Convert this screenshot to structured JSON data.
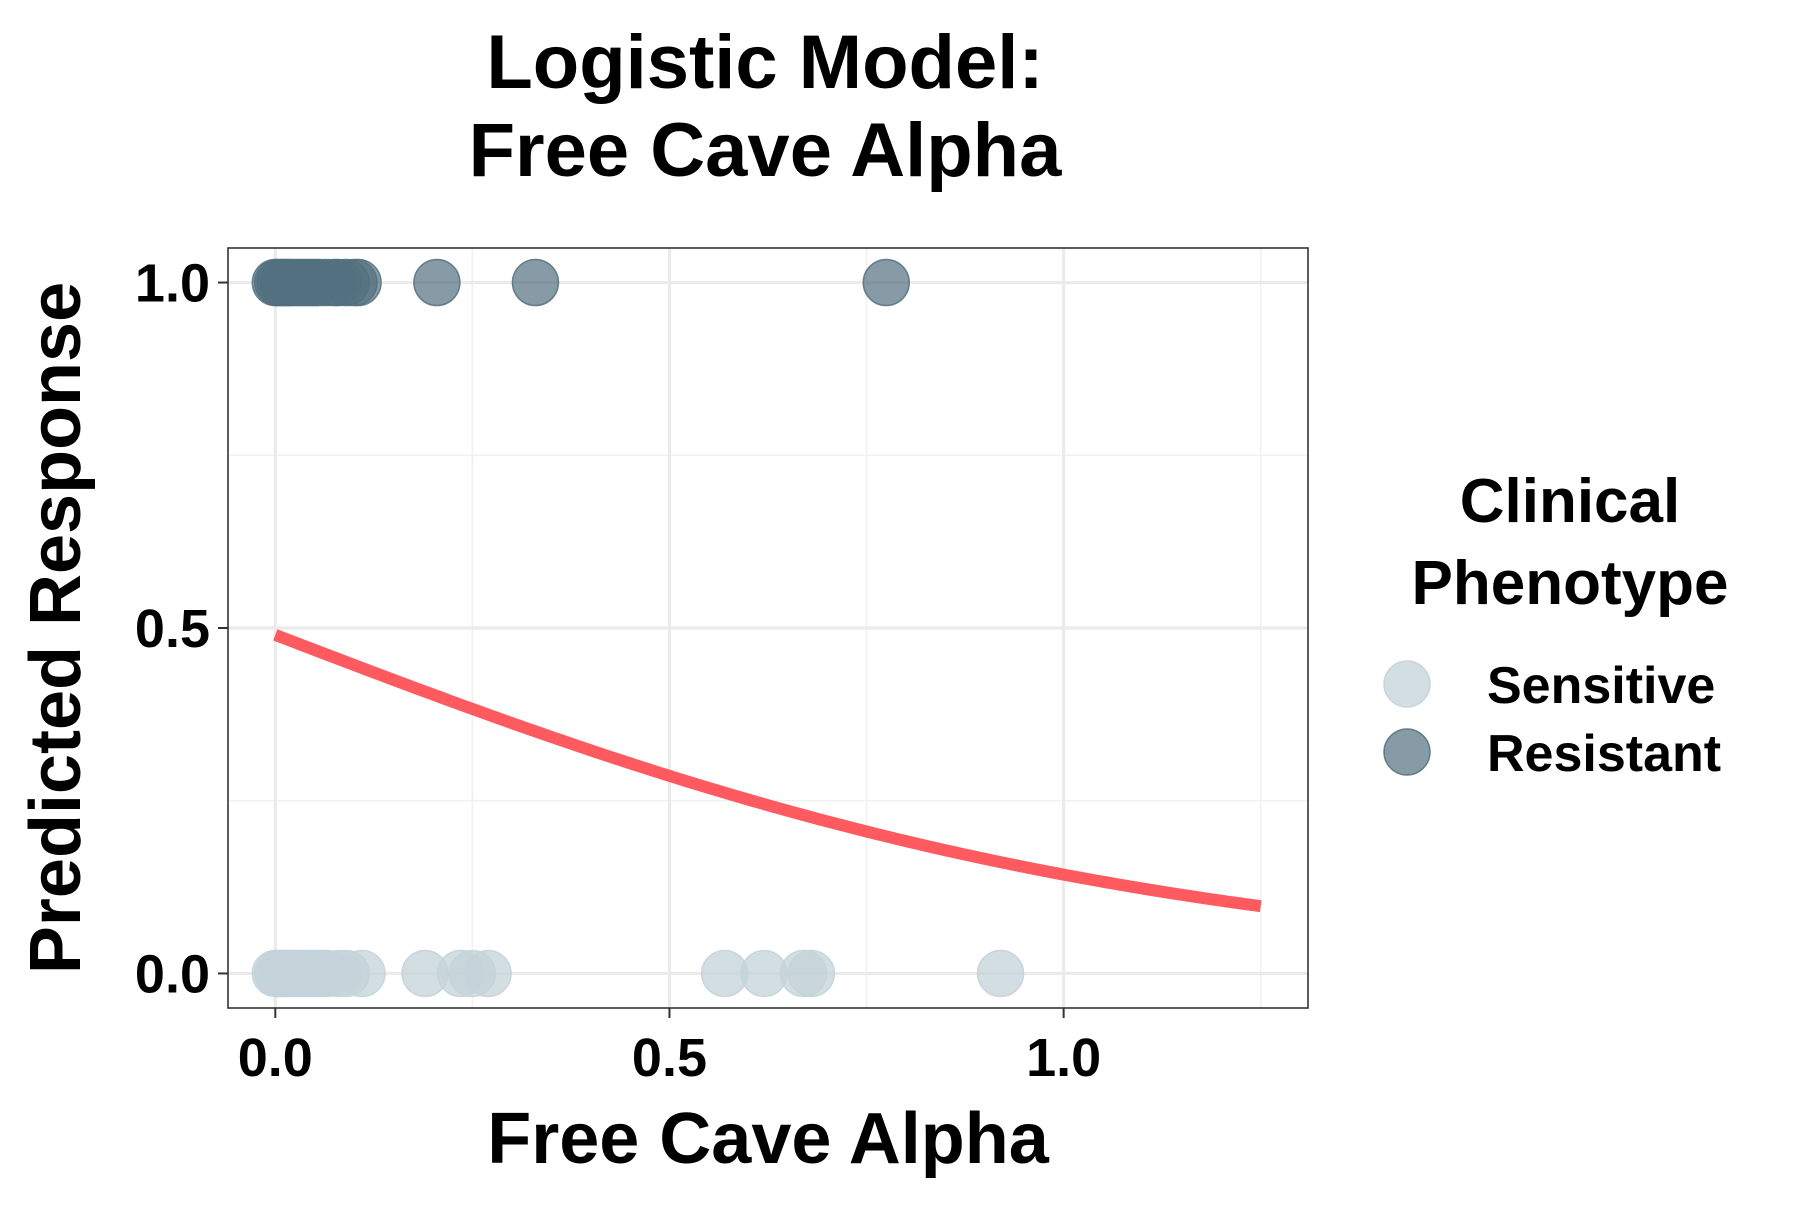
{
  "chart_data": {
    "type": "scatter",
    "title_lines": [
      "Logistic Model:",
      "Free Cave Alpha"
    ],
    "xlabel": "Free Cave Alpha",
    "ylabel": "Predicted Response",
    "xlim": [
      -0.06,
      1.31
    ],
    "ylim": [
      -0.05,
      1.05
    ],
    "x_ticks": [
      0.0,
      0.5,
      1.0
    ],
    "x_tick_labels": [
      "0.0",
      "0.5",
      "1.0"
    ],
    "y_ticks": [
      0.0,
      0.5,
      1.0
    ],
    "y_tick_labels": [
      "0.0",
      "0.5",
      "1.0"
    ],
    "x_minor_ticks": [
      0.25,
      0.75,
      1.25
    ],
    "y_minor_ticks": [
      0.25,
      0.75
    ],
    "grid": true,
    "legend": {
      "title_lines": [
        "Clinical",
        "Phenotype"
      ],
      "position": "right",
      "entries": [
        {
          "label": "Sensitive",
          "color": "#c4d3da",
          "opacity": 0.75
        },
        {
          "label": "Resistant",
          "color": "#52707f",
          "opacity": 0.7
        }
      ]
    },
    "series": [
      {
        "name": "Sensitive",
        "color": "#c4d3da",
        "y": 0,
        "x": [
          0.0,
          0.003,
          0.006,
          0.01,
          0.013,
          0.017,
          0.02,
          0.025,
          0.03,
          0.035,
          0.04,
          0.045,
          0.05,
          0.055,
          0.06,
          0.065,
          0.08,
          0.09,
          0.11,
          0.19,
          0.235,
          0.25,
          0.27,
          0.57,
          0.62,
          0.67,
          0.68,
          0.92
        ]
      },
      {
        "name": "Resistant",
        "color": "#52707f",
        "y": 1,
        "x": [
          0.0,
          0.003,
          0.006,
          0.01,
          0.013,
          0.017,
          0.02,
          0.025,
          0.03,
          0.035,
          0.04,
          0.045,
          0.05,
          0.055,
          0.065,
          0.075,
          0.08,
          0.09,
          0.1,
          0.105,
          0.205,
          0.33,
          0.775
        ]
      }
    ],
    "fit_curve": {
      "color": "#ff5a5f",
      "intercept": -0.04,
      "slope": -1.75,
      "x_range": [
        0.0,
        1.25
      ]
    }
  }
}
